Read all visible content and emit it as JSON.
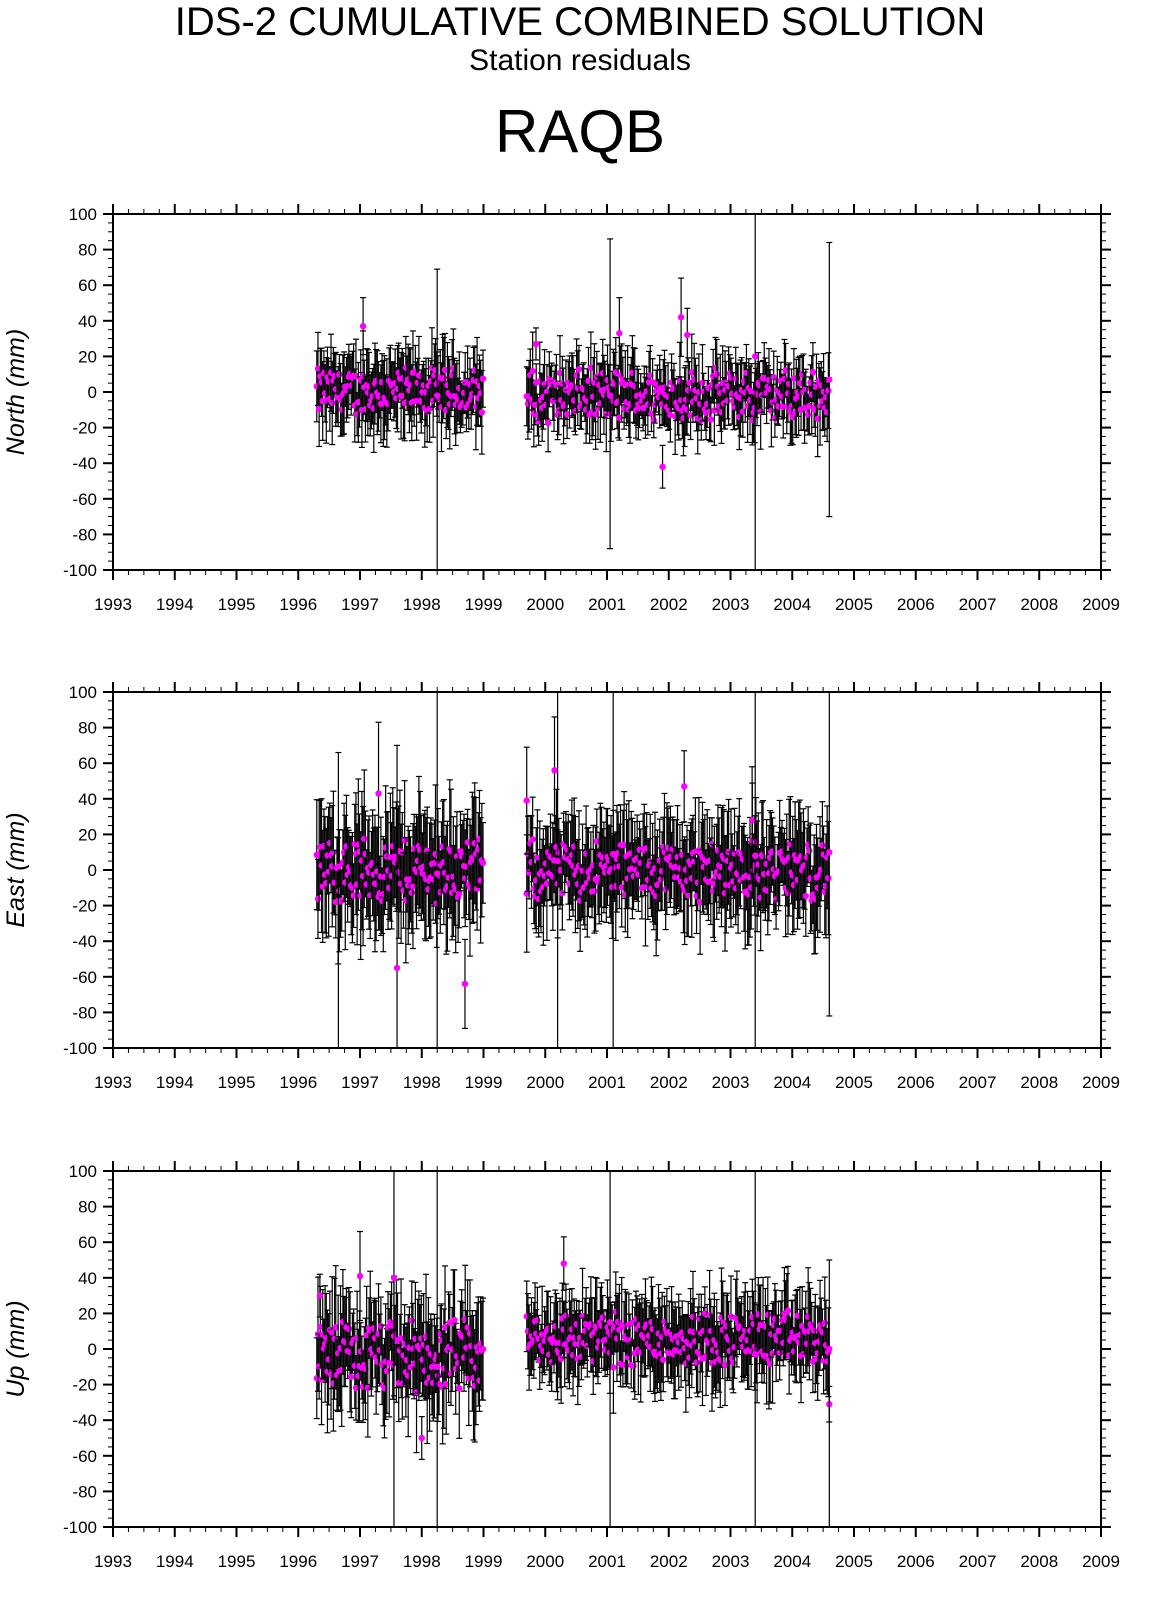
{
  "header": {
    "title": "IDS-2 CUMULATIVE COMBINED SOLUTION",
    "subtitle": "Station residuals",
    "station": "RAQB"
  },
  "colors": {
    "marker": "#ff00ff",
    "errorbar": "#000000",
    "axis": "#000000"
  },
  "chart_data": [
    {
      "type": "scatter",
      "ylabel": "North (mm)",
      "xlim": [
        1993,
        2009
      ],
      "ylim": [
        -100,
        100
      ],
      "xticks": [
        "1993",
        "1994",
        "1995",
        "1996",
        "1997",
        "1998",
        "1999",
        "2000",
        "2001",
        "2002",
        "2003",
        "2004",
        "2005",
        "2006",
        "2007",
        "2008",
        "2009"
      ],
      "yticks": [
        "100",
        "80",
        "60",
        "40",
        "20",
        "0",
        "-20",
        "-40",
        "-60",
        "-80",
        "-100"
      ],
      "grid": false,
      "error_bars": true,
      "data_segments": [
        {
          "start": 1996.3,
          "end": 1999.0,
          "center": 0,
          "amplitude": 13,
          "error": 18
        },
        {
          "start": 1999.7,
          "end": 2004.6,
          "center": -2,
          "amplitude": 14,
          "error": 16
        }
      ],
      "points": [
        {
          "x": 1997.05,
          "y": 37,
          "err": 16
        },
        {
          "x": 2001.2,
          "y": 33,
          "err": 20
        },
        {
          "x": 2002.2,
          "y": 42,
          "err": 22
        },
        {
          "x": 2002.3,
          "y": 32,
          "err": 15
        },
        {
          "x": 1999.85,
          "y": 27,
          "err": 9
        },
        {
          "x": 2001.9,
          "y": -42,
          "err": 12
        }
      ],
      "long_error_bars": [
        {
          "x": 1998.25,
          "y": -2,
          "low": -100,
          "high": 69
        },
        {
          "x": 2003.4,
          "y": 20,
          "low": -100,
          "high": 100
        },
        {
          "x": 2004.6,
          "y": 7,
          "low": -70,
          "high": 84
        },
        {
          "x": 2001.05,
          "y": -2,
          "low": -88,
          "high": 86
        }
      ]
    },
    {
      "type": "scatter",
      "ylabel": "East (mm)",
      "xlim": [
        1993,
        2009
      ],
      "ylim": [
        -100,
        100
      ],
      "xticks": [
        "1993",
        "1994",
        "1995",
        "1996",
        "1997",
        "1998",
        "1999",
        "2000",
        "2001",
        "2002",
        "2003",
        "2004",
        "2005",
        "2006",
        "2007",
        "2008",
        "2009"
      ],
      "yticks": [
        "100",
        "80",
        "60",
        "40",
        "20",
        "0",
        "-20",
        "-40",
        "-60",
        "-80",
        "-100"
      ],
      "grid": false,
      "error_bars": true,
      "data_segments": [
        {
          "start": 1996.3,
          "end": 1999.0,
          "center": 0,
          "amplitude": 18,
          "error": 28
        },
        {
          "start": 1999.7,
          "end": 2004.6,
          "center": 0,
          "amplitude": 16,
          "error": 24
        }
      ],
      "points": [
        {
          "x": 1997.3,
          "y": 43,
          "err": 40
        },
        {
          "x": 2000.15,
          "y": 56,
          "err": 30
        },
        {
          "x": 2002.25,
          "y": 47,
          "err": 20
        },
        {
          "x": 1998.7,
          "y": -64,
          "err": 25
        },
        {
          "x": 1999.7,
          "y": 39,
          "err": 30
        },
        {
          "x": 2003.35,
          "y": 28,
          "err": 30
        }
      ],
      "long_error_bars": [
        {
          "x": 1996.65,
          "y": 2,
          "low": -100,
          "high": 66
        },
        {
          "x": 1997.6,
          "y": -55,
          "low": -100,
          "high": 70
        },
        {
          "x": 1998.25,
          "y": -2,
          "low": -100,
          "high": 100
        },
        {
          "x": 2000.2,
          "y": 5,
          "low": -100,
          "high": 100
        },
        {
          "x": 2001.1,
          "y": 9,
          "low": -100,
          "high": 100
        },
        {
          "x": 2003.4,
          "y": 8,
          "low": -100,
          "high": 100
        },
        {
          "x": 2004.6,
          "y": 10,
          "low": -82,
          "high": 100
        }
      ]
    },
    {
      "type": "scatter",
      "ylabel": "Up (mm)",
      "xlim": [
        1993,
        2009
      ],
      "ylim": [
        -100,
        100
      ],
      "xticks": [
        "1993",
        "1994",
        "1995",
        "1996",
        "1997",
        "1998",
        "1999",
        "2000",
        "2001",
        "2002",
        "2003",
        "2004",
        "2005",
        "2006",
        "2007",
        "2008",
        "2009"
      ],
      "yticks": [
        "100",
        "80",
        "60",
        "40",
        "20",
        "0",
        "-20",
        "-40",
        "-60",
        "-80",
        "-100"
      ],
      "grid": false,
      "error_bars": true,
      "data_segments": [
        {
          "start": 1996.3,
          "end": 1999.0,
          "center": -5,
          "amplitude": 20,
          "error": 25
        },
        {
          "start": 1999.7,
          "end": 2004.6,
          "center": 6,
          "amplitude": 15,
          "error": 20
        }
      ],
      "points": [
        {
          "x": 1996.35,
          "y": 30,
          "err": 12
        },
        {
          "x": 2000.3,
          "y": 48,
          "err": 15
        },
        {
          "x": 1998.0,
          "y": -50,
          "err": 12
        },
        {
          "x": 1997.0,
          "y": 41,
          "err": 25
        },
        {
          "x": 2004.6,
          "y": -31,
          "err": 10
        }
      ],
      "long_error_bars": [
        {
          "x": 1997.55,
          "y": 40,
          "low": -100,
          "high": 100
        },
        {
          "x": 1998.25,
          "y": -10,
          "low": -100,
          "high": 100
        },
        {
          "x": 2001.05,
          "y": 15,
          "low": -100,
          "high": 100
        },
        {
          "x": 2003.4,
          "y": -3,
          "low": -100,
          "high": 100
        },
        {
          "x": 2004.6,
          "y": 0,
          "low": -100,
          "high": 50
        }
      ]
    }
  ]
}
